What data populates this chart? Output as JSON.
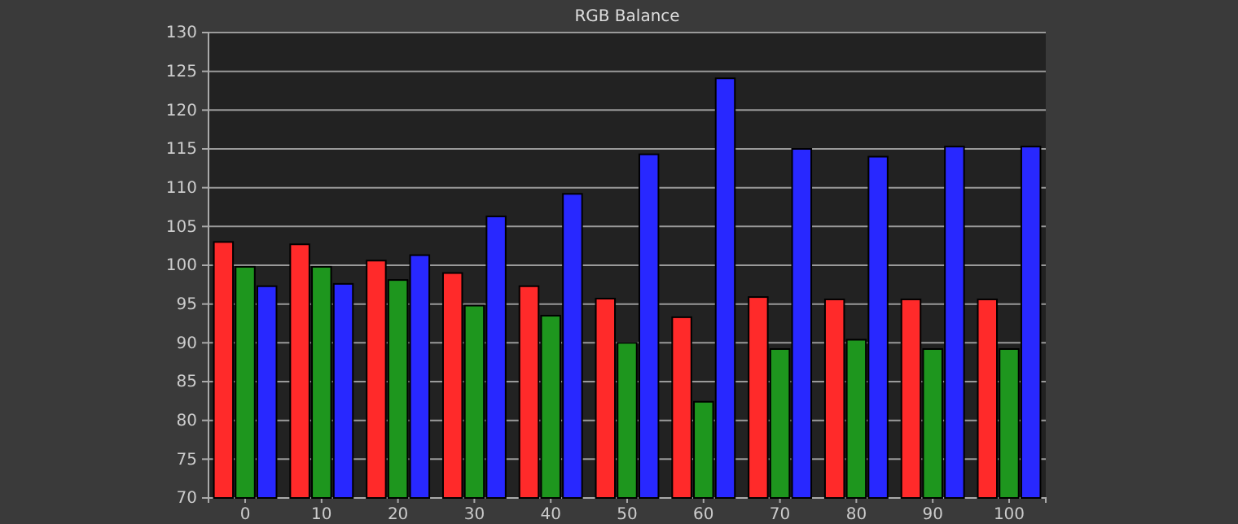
{
  "chart_data": {
    "type": "bar",
    "title": "RGB Balance",
    "categories": [
      "0",
      "10",
      "20",
      "30",
      "40",
      "50",
      "60",
      "70",
      "80",
      "90",
      "100"
    ],
    "series": [
      {
        "color": "#ff2a2a",
        "values": [
          103,
          102.7,
          100.6,
          99,
          97.3,
          95.7,
          93.3,
          95.9,
          95.6,
          95.6,
          95.6
        ]
      },
      {
        "color": "#1e961e",
        "values": [
          99.8,
          99.8,
          98.1,
          94.8,
          93.5,
          90,
          82.4,
          89.2,
          90.4,
          89.2,
          89.2
        ]
      },
      {
        "color": "#2828ff",
        "values": [
          97.3,
          97.6,
          101.3,
          106.3,
          109.2,
          114.3,
          124.1,
          115,
          114,
          115.3,
          115.3
        ]
      }
    ],
    "ylim": [
      70,
      130
    ],
    "yticks": [
      70,
      75,
      80,
      85,
      90,
      95,
      100,
      105,
      110,
      115,
      120,
      125,
      130
    ],
    "grid": "y",
    "legend": false
  }
}
